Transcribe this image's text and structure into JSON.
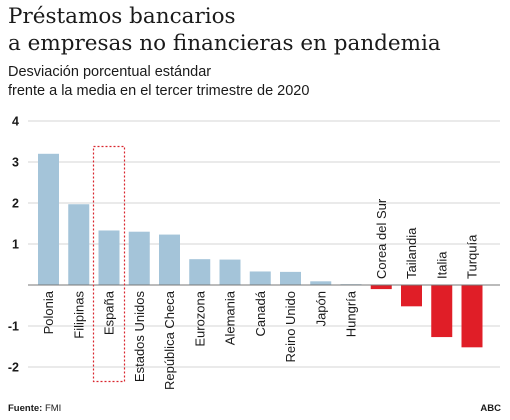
{
  "chart_data": {
    "type": "bar",
    "title_lines": [
      "Préstamos bancarios",
      "a empresas no financieras en pandemia"
    ],
    "subtitle_lines": [
      "Desviación porcentual estándar",
      "frente a la media en el tercer trimestre de 2020"
    ],
    "categories": [
      "Polonia",
      "Filipinas",
      "España",
      "Estados Unidos",
      "República Checa",
      "Eurozona",
      "Alemania",
      "Canadá",
      "Reino Unido",
      "Japón",
      "Hungría",
      "Corea del Sur",
      "Tailandia",
      "Italia",
      "Turquía"
    ],
    "values": [
      3.2,
      1.97,
      1.33,
      1.3,
      1.23,
      0.63,
      0.62,
      0.33,
      0.32,
      0.09,
      0.02,
      -0.1,
      -0.52,
      -1.27,
      -1.52
    ],
    "highlight": "España",
    "ylim": [
      -2.5,
      4
    ],
    "yticks": [
      4,
      3,
      2,
      1,
      -1,
      -2
    ],
    "grid": true,
    "colors": {
      "positive": "#a4c4d9",
      "negative": "#e01e27",
      "highlight_box": "#d9262e",
      "text": "#1a1a1a"
    }
  },
  "footer": {
    "source_label": "Fuente:",
    "source_value": "FMI",
    "brand": "ABC"
  }
}
